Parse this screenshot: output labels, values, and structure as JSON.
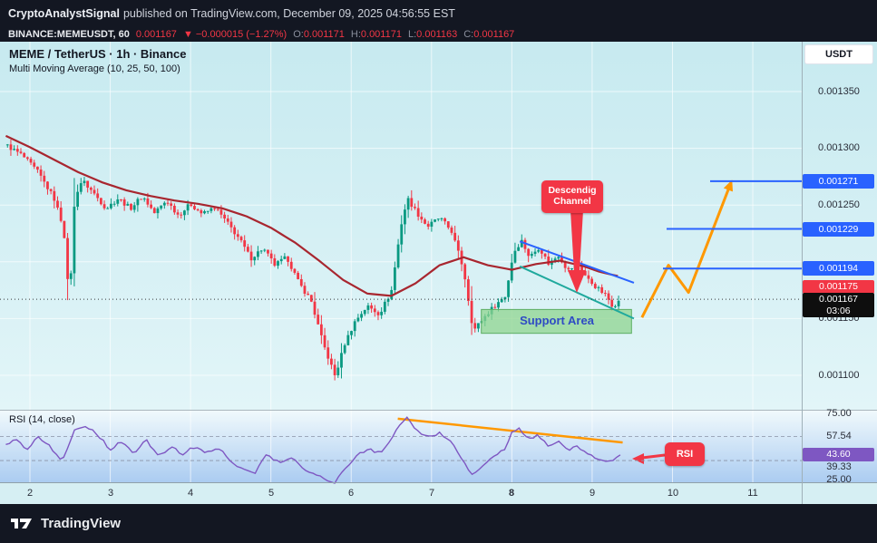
{
  "colors": {
    "up": "#089981",
    "down": "#f23645",
    "ma_line": "#a8262f",
    "level_blue": "#2962ff",
    "rsi_line": "#7e57c2",
    "orange": "#ff9800",
    "channel_upper": "#2962ff",
    "channel_lower": "#1fa99d",
    "support_fill": "#8fd48f",
    "support_stroke": "#5cae63",
    "support_text": "#2f4bc4",
    "grid": "rgba(255,255,255,0.65)"
  },
  "top_bar": {
    "author": "CryptoAnalystSignal",
    "published": "published on TradingView.com, December 09, 2025 04:56:55 EST"
  },
  "symbol_bar": {
    "symbol": "BINANCE:MEMEUSDT, 60",
    "last_price": "0.001167",
    "change": "▼ −0.000015 (−1.27%)",
    "o_label": "O:",
    "o_value": "0.001171",
    "h_label": "H:",
    "h_value": "0.001171",
    "l_label": "L:",
    "l_value": "0.001163",
    "c_label": "C:",
    "c_value": "0.001167"
  },
  "legend": {
    "title": "MEME / TetherUS · 1h · Binance",
    "indicator": "Multi Moving Average (10, 25, 50, 100)"
  },
  "currency_button": "USDT",
  "annotations": {
    "channel_line1": "Descendig",
    "channel_line2": "Channel",
    "support_area": "Support Area",
    "rsi_tag": "RSI"
  },
  "price_scale": {
    "plain": [
      "0.001350",
      "0.001300",
      "0.001250",
      "0.001150",
      "0.001100"
    ],
    "badge_r1": "0.001271",
    "badge_r2": "0.001229",
    "badge_r3": "0.001194",
    "badge_ma": "0.001175",
    "badge_last": "0.001167",
    "countdown": "03:06"
  },
  "rsi_pane": {
    "legend": "RSI (14, close)",
    "scale": [
      "75.00",
      "57.54",
      "39.33",
      "25.00"
    ],
    "badge": "43.60"
  },
  "time_axis": [
    "2",
    "3",
    "4",
    "5",
    "6",
    "7",
    "8",
    "9",
    "10",
    "11"
  ],
  "footer": {
    "brand": "TradingView"
  },
  "chart_data": {
    "type": "candlestick",
    "symbol": "BINANCE:MEMEUSDT",
    "interval": "1h",
    "title": "MEME / TetherUS · 1h · Binance",
    "indicators": [
      "Multi Moving Average (10, 25, 50, 100)",
      "RSI (14, close)"
    ],
    "x_axis_days": [
      2,
      3,
      4,
      5,
      6,
      7,
      8,
      9,
      10,
      11
    ],
    "visible_price_range": [
      0.001085,
      0.001365
    ],
    "price_gridlines": [
      0.00135,
      0.0013,
      0.00125,
      0.0012,
      0.00115,
      0.0011
    ],
    "last_price": 0.001167,
    "ohlc": {
      "open": 0.001171,
      "high": 0.001171,
      "low": 0.001163,
      "close": 0.001167
    },
    "change": -1.5e-05,
    "change_pct": -1.27,
    "resistance_levels": [
      0.001271,
      0.001229,
      0.001194
    ],
    "ma_last_value": 0.001175,
    "candles": {
      "start_day": 1.7,
      "end_day": 9.35,
      "count": 184
    },
    "close_path": [
      [
        1.7,
        0.001303
      ],
      [
        1.9,
        0.001294
      ],
      [
        2.1,
        0.001279
      ],
      [
        2.3,
        0.001256
      ],
      [
        2.42,
        0.00123
      ],
      [
        2.49,
        0.001163
      ],
      [
        2.56,
        0.001258
      ],
      [
        2.65,
        0.001272
      ],
      [
        2.8,
        0.00126
      ],
      [
        2.95,
        0.001247
      ],
      [
        3.1,
        0.001256
      ],
      [
        3.25,
        0.001247
      ],
      [
        3.4,
        0.001258
      ],
      [
        3.55,
        0.001243
      ],
      [
        3.7,
        0.001254
      ],
      [
        3.85,
        0.001241
      ],
      [
        4.0,
        0.001251
      ],
      [
        4.15,
        0.001242
      ],
      [
        4.3,
        0.001248
      ],
      [
        4.45,
        0.001235
      ],
      [
        4.6,
        0.001221
      ],
      [
        4.75,
        0.001203
      ],
      [
        4.9,
        0.001212
      ],
      [
        5.05,
        0.001197
      ],
      [
        5.2,
        0.001204
      ],
      [
        5.35,
        0.001181
      ],
      [
        5.5,
        0.001166
      ],
      [
        5.65,
        0.001128
      ],
      [
        5.8,
        0.001099
      ],
      [
        5.92,
        0.001128
      ],
      [
        6.05,
        0.001148
      ],
      [
        6.2,
        0.001161
      ],
      [
        6.35,
        0.001154
      ],
      [
        6.5,
        0.001174
      ],
      [
        6.62,
        0.001232
      ],
      [
        6.7,
        0.001256
      ],
      [
        6.82,
        0.001243
      ],
      [
        6.95,
        0.001231
      ],
      [
        7.1,
        0.001239
      ],
      [
        7.25,
        0.001227
      ],
      [
        7.4,
        0.001193
      ],
      [
        7.52,
        0.001139
      ],
      [
        7.64,
        0.00115
      ],
      [
        7.78,
        0.001161
      ],
      [
        7.92,
        0.00117
      ],
      [
        8.02,
        0.001208
      ],
      [
        8.12,
        0.001219
      ],
      [
        8.22,
        0.001204
      ],
      [
        8.34,
        0.001213
      ],
      [
        8.46,
        0.001198
      ],
      [
        8.58,
        0.001206
      ],
      [
        8.7,
        0.001192
      ],
      [
        8.82,
        0.001199
      ],
      [
        8.94,
        0.001185
      ],
      [
        9.06,
        0.001177
      ],
      [
        9.16,
        0.001171
      ],
      [
        9.26,
        0.001161
      ],
      [
        9.35,
        0.001167
      ]
    ],
    "ma_path": [
      [
        1.7,
        0.001311
      ],
      [
        2.0,
        0.001301
      ],
      [
        2.3,
        0.00129
      ],
      [
        2.6,
        0.001279
      ],
      [
        2.9,
        0.00127
      ],
      [
        3.2,
        0.001263
      ],
      [
        3.5,
        0.001258
      ],
      [
        3.8,
        0.001254
      ],
      [
        4.1,
        0.001251
      ],
      [
        4.4,
        0.001247
      ],
      [
        4.7,
        0.00124
      ],
      [
        5.0,
        0.00123
      ],
      [
        5.3,
        0.001217
      ],
      [
        5.6,
        0.001201
      ],
      [
        5.9,
        0.001184
      ],
      [
        6.2,
        0.001172
      ],
      [
        6.5,
        0.00117
      ],
      [
        6.8,
        0.001181
      ],
      [
        7.1,
        0.001197
      ],
      [
        7.4,
        0.001204
      ],
      [
        7.7,
        0.001197
      ],
      [
        8.0,
        0.001193
      ],
      [
        8.3,
        0.001198
      ],
      [
        8.6,
        0.001201
      ],
      [
        8.9,
        0.001196
      ],
      [
        9.1,
        0.001191
      ],
      [
        9.35,
        0.001187
      ]
    ],
    "support_area": {
      "day_from": 7.62,
      "day_to": 9.49,
      "price_top": 0.001158,
      "price_bottom": 0.001137
    },
    "channel_upper": [
      [
        8.1,
        0.001218
      ],
      [
        9.52,
        0.0011815
      ]
    ],
    "channel_lower": [
      [
        8.1,
        0.001196
      ],
      [
        9.52,
        0.00115
      ]
    ],
    "projection_arrow": [
      [
        9.62,
        0.001151
      ],
      [
        9.95,
        0.001197
      ],
      [
        10.2,
        0.001173
      ],
      [
        10.73,
        0.00127
      ]
    ],
    "rsi": {
      "value": 43.6,
      "bands": [
        57.54,
        39.33
      ],
      "scale_top": 75.0,
      "scale_bottom": 25.0,
      "trendline": [
        [
          6.58,
          71
        ],
        [
          9.38,
          53
        ]
      ],
      "path": [
        [
          1.7,
          52
        ],
        [
          1.85,
          56
        ],
        [
          1.95,
          47
        ],
        [
          2.1,
          58
        ],
        [
          2.25,
          50
        ],
        [
          2.4,
          38
        ],
        [
          2.55,
          62
        ],
        [
          2.7,
          66
        ],
        [
          2.85,
          58
        ],
        [
          3.0,
          48
        ],
        [
          3.15,
          54
        ],
        [
          3.3,
          44
        ],
        [
          3.45,
          55
        ],
        [
          3.6,
          42
        ],
        [
          3.75,
          50
        ],
        [
          3.9,
          44
        ],
        [
          4.05,
          50
        ],
        [
          4.2,
          45
        ],
        [
          4.35,
          49
        ],
        [
          4.5,
          38
        ],
        [
          4.65,
          34
        ],
        [
          4.8,
          30
        ],
        [
          4.95,
          44
        ],
        [
          5.1,
          38
        ],
        [
          5.25,
          42
        ],
        [
          5.4,
          33
        ],
        [
          5.55,
          30
        ],
        [
          5.7,
          24
        ],
        [
          5.8,
          22
        ],
        [
          5.9,
          32
        ],
        [
          6.05,
          42
        ],
        [
          6.2,
          48
        ],
        [
          6.35,
          45
        ],
        [
          6.5,
          55
        ],
        [
          6.62,
          68
        ],
        [
          6.7,
          72
        ],
        [
          6.8,
          62
        ],
        [
          6.95,
          57
        ],
        [
          7.1,
          60
        ],
        [
          7.25,
          54
        ],
        [
          7.4,
          38
        ],
        [
          7.52,
          28
        ],
        [
          7.62,
          34
        ],
        [
          7.75,
          42
        ],
        [
          7.9,
          47
        ],
        [
          8.0,
          60
        ],
        [
          8.1,
          64
        ],
        [
          8.2,
          55
        ],
        [
          8.32,
          59
        ],
        [
          8.45,
          50
        ],
        [
          8.58,
          54
        ],
        [
          8.7,
          47
        ],
        [
          8.82,
          50
        ],
        [
          8.95,
          44
        ],
        [
          9.05,
          41
        ],
        [
          9.15,
          40
        ],
        [
          9.25,
          38
        ],
        [
          9.35,
          43.6
        ]
      ]
    }
  }
}
